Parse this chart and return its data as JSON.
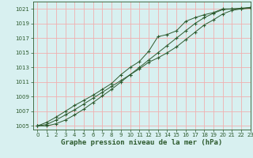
{
  "title": "",
  "xlabel": "Graphe pression niveau de la mer (hPa)",
  "ylabel": "",
  "background_color": "#d8f0f0",
  "grid_color": "#f0b0b0",
  "line_color": "#2d5a2d",
  "xlim": [
    -0.5,
    23
  ],
  "ylim": [
    1004.5,
    1022
  ],
  "yticks": [
    1005,
    1007,
    1009,
    1011,
    1013,
    1015,
    1017,
    1019,
    1021
  ],
  "xticks": [
    0,
    1,
    2,
    3,
    4,
    5,
    6,
    7,
    8,
    9,
    10,
    11,
    12,
    13,
    14,
    15,
    16,
    17,
    18,
    19,
    20,
    21,
    22,
    23
  ],
  "series1": [
    1005.0,
    1005.5,
    1006.2,
    1007.0,
    1007.8,
    1008.5,
    1009.2,
    1010.0,
    1010.8,
    1012.0,
    1013.0,
    1013.8,
    1015.2,
    1017.2,
    1017.5,
    1018.0,
    1019.3,
    1019.8,
    1020.2,
    1020.5,
    1021.0,
    1021.0,
    1021.0,
    1021.1
  ],
  "series2": [
    1005.0,
    1005.2,
    1005.8,
    1006.5,
    1007.2,
    1008.0,
    1008.8,
    1009.6,
    1010.4,
    1011.2,
    1012.0,
    1012.8,
    1013.7,
    1014.3,
    1015.0,
    1015.8,
    1016.8,
    1017.8,
    1018.8,
    1019.5,
    1020.3,
    1020.8,
    1021.0,
    1021.2
  ],
  "series3": [
    1005.0,
    1005.0,
    1005.3,
    1005.8,
    1006.5,
    1007.3,
    1008.2,
    1009.1,
    1010.0,
    1011.0,
    1012.0,
    1013.0,
    1014.0,
    1015.0,
    1016.0,
    1017.0,
    1018.0,
    1019.0,
    1019.8,
    1020.4,
    1020.9,
    1021.0,
    1021.1,
    1021.2
  ]
}
